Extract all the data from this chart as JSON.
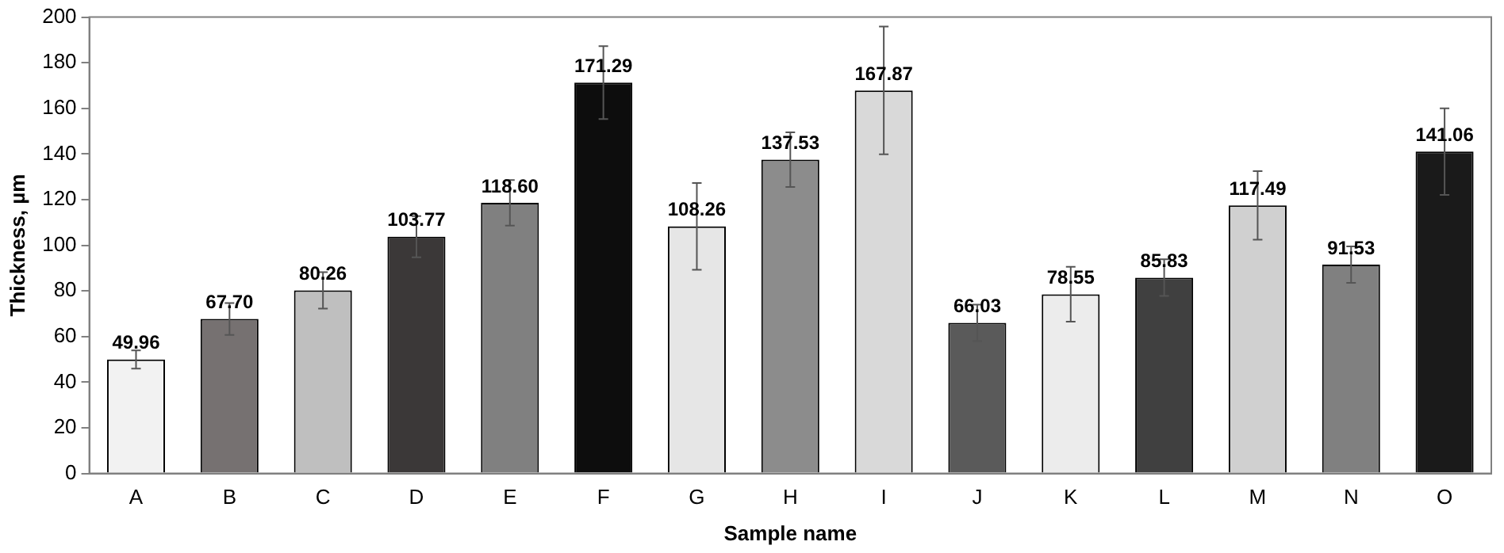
{
  "chart_data": {
    "type": "bar",
    "xlabel": "Sample name",
    "ylabel": "Thickness, µm",
    "categories": [
      "A",
      "B",
      "C",
      "D",
      "E",
      "F",
      "G",
      "H",
      "I",
      "J",
      "K",
      "L",
      "M",
      "N",
      "O"
    ],
    "values": [
      49.96,
      67.7,
      80.26,
      103.77,
      118.6,
      171.29,
      108.26,
      137.53,
      167.87,
      66.03,
      78.55,
      85.83,
      117.49,
      91.53,
      141.06
    ],
    "value_labels": [
      "49.96",
      "67.70",
      "80.26",
      "103.77",
      "118.60",
      "171.29",
      "108.26",
      "137.53",
      "167.87",
      "66.03",
      "78.55",
      "85.83",
      "117.49",
      "91.53",
      "141.06"
    ],
    "errors": [
      4,
      7,
      8,
      9,
      10,
      16,
      19,
      12,
      28,
      8,
      12,
      8,
      15,
      8,
      19
    ],
    "colors": [
      "#f2f2f2",
      "#767171",
      "#bfbfbf",
      "#3b3838",
      "#808080",
      "#0d0d0d",
      "#e6e6e6",
      "#8c8c8c",
      "#d9d9d9",
      "#5a5a5a",
      "#ececec",
      "#404040",
      "#d0d0d0",
      "#808080",
      "#1a1a1a"
    ],
    "ylim": [
      0,
      200
    ],
    "yticks": [
      0,
      20,
      40,
      60,
      80,
      100,
      120,
      140,
      160,
      180,
      200
    ],
    "grid": false,
    "legend": false
  }
}
